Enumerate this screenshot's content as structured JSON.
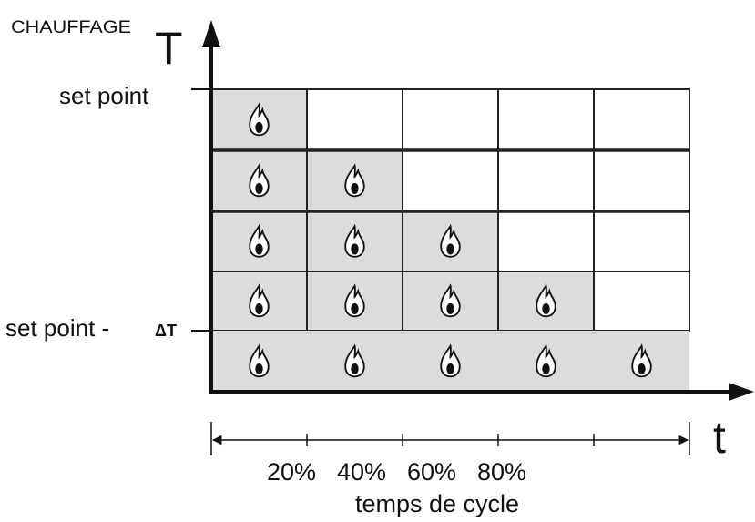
{
  "header": {
    "y_axis_title": "CHAUFFAGE",
    "y_axis_symbol": "T",
    "x_axis_symbol": "t"
  },
  "levels": {
    "top": "set point",
    "bottom": "set point -",
    "bottom_delta": "ΔT"
  },
  "cycle": {
    "percentages": [
      "20%",
      "40%",
      "60%",
      "80%"
    ],
    "label": "temps de cycle"
  }
}
